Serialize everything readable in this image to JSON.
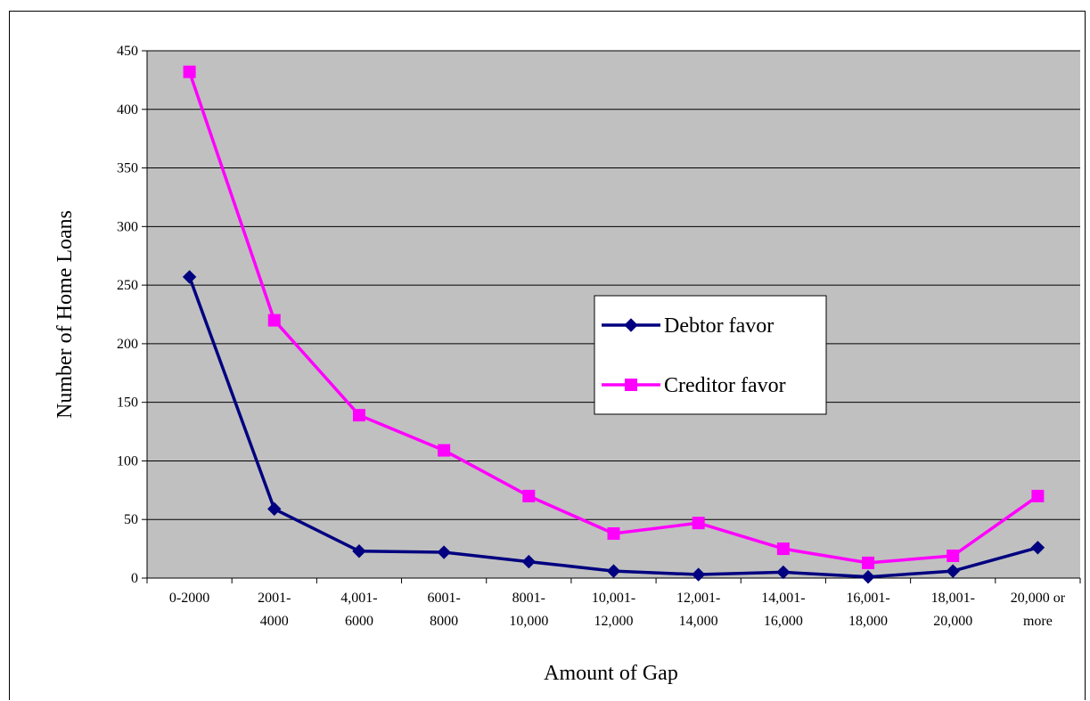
{
  "chart_data": {
    "type": "line",
    "title": "",
    "xlabel": "Amount of Gap",
    "ylabel": "Number of Home Loans",
    "categories": [
      [
        "0-2000"
      ],
      [
        "2001-",
        "4000"
      ],
      [
        "4,001-",
        "6000"
      ],
      [
        "6001-",
        "8000"
      ],
      [
        "8001-",
        "10,000"
      ],
      [
        "10,001-",
        "12,000"
      ],
      [
        "12,001-",
        "14,000"
      ],
      [
        "14,001-",
        "16,000"
      ],
      [
        "16,001-",
        "18,000"
      ],
      [
        "18,001-",
        "20,000"
      ],
      [
        "20,000 or",
        "more"
      ]
    ],
    "ylim": [
      0,
      450
    ],
    "yticks": [
      0,
      50,
      100,
      150,
      200,
      250,
      300,
      350,
      400,
      450
    ],
    "grid": true,
    "legend_position": "center-right",
    "series": [
      {
        "name": "Debtor favor",
        "color": "#000080",
        "marker": "diamond",
        "values": [
          257,
          59,
          23,
          22,
          14,
          6,
          3,
          5,
          1,
          6,
          26
        ]
      },
      {
        "name": "Creditor favor",
        "color": "#ff00ff",
        "marker": "square",
        "values": [
          432,
          220,
          139,
          109,
          70,
          38,
          47,
          25,
          13,
          19,
          70
        ]
      }
    ],
    "plot_background": "#c0c0c0"
  }
}
